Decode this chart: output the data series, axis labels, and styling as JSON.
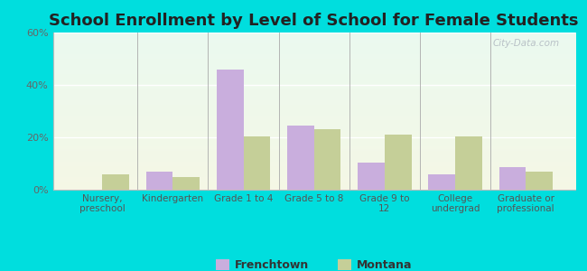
{
  "title": "School Enrollment by Level of School for Female Students",
  "categories": [
    "Nursery,\npreschool",
    "Kindergarten",
    "Grade 1 to 4",
    "Grade 5 to 8",
    "Grade 9 to\n12",
    "College\nundergrad",
    "Graduate or\nprofessional"
  ],
  "frenchtown": [
    0.0,
    7.0,
    46.0,
    24.5,
    10.5,
    6.0,
    8.5
  ],
  "montana": [
    6.0,
    5.0,
    20.5,
    23.0,
    21.0,
    20.5,
    7.0
  ],
  "frenchtown_color": "#c9aedd",
  "montana_color": "#c5cf98",
  "background_outer": "#00dede",
  "background_inner": "#eaf5e4",
  "ylim": [
    0,
    60
  ],
  "yticks": [
    0,
    20,
    40,
    60
  ],
  "ytick_labels": [
    "0%",
    "20%",
    "40%",
    "60%"
  ],
  "title_fontsize": 13,
  "legend_labels": [
    "Frenchtown",
    "Montana"
  ],
  "bar_width": 0.38,
  "watermark": "City-Data.com"
}
